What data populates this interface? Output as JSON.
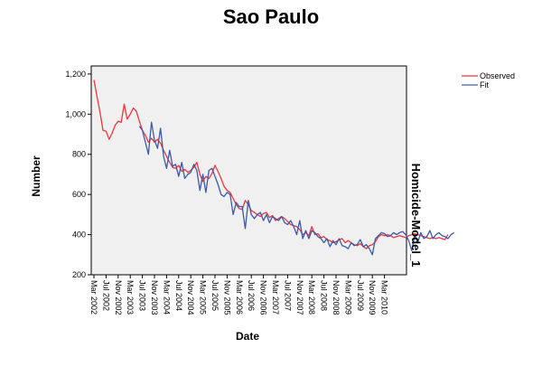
{
  "chart_data": {
    "type": "line",
    "title": "Sao Paulo",
    "xlabel": "Date",
    "ylabel": "Number",
    "right_label": "Homicide-Model_1",
    "ylim": [
      200,
      1240
    ],
    "yticks": [
      200,
      400,
      600,
      800,
      1000,
      1200
    ],
    "ytick_labels": [
      "200",
      "400",
      "600",
      "800",
      "1,000",
      "1,200"
    ],
    "x_tick_labels": [
      "Mar 2002",
      "Jul 2002",
      "Nov 2002",
      "Mar 2003",
      "Jul 2003",
      "Nov 2003",
      "Mar 2004",
      "Jul 2004",
      "Nov 2004",
      "Mar 2005",
      "Jul 2005",
      "Nov 2005",
      "Mar 2006",
      "Jul 2006",
      "Nov 2006",
      "Mar 2007",
      "Jul 2007",
      "Nov 2007",
      "Mar 2008",
      "Jul 2008",
      "Nov 2008",
      "Mar 2009",
      "Jul 2009",
      "Nov 2009",
      "Mar 2010"
    ],
    "x_start_label": "Mar 2002",
    "months_per_tick": 4,
    "grid": false,
    "legend_position": "top-right",
    "series": [
      {
        "name": "Observed",
        "color": "#e8383d",
        "values": [
          1170,
          1090,
          1010,
          920,
          915,
          875,
          905,
          945,
          965,
          960,
          1050,
          975,
          1000,
          1030,
          1015,
          965,
          920,
          895,
          860,
          880,
          860,
          875,
          855,
          820,
          790,
          760,
          735,
          730,
          745,
          715,
          725,
          710,
          720,
          735,
          760,
          700,
          665,
          690,
          680,
          705,
          745,
          715,
          680,
          640,
          620,
          610,
          580,
          550,
          530,
          525,
          570,
          550,
          520,
          510,
          500,
          490,
          505,
          510,
          485,
          495,
          470,
          480,
          490,
          480,
          465,
          450,
          445,
          440,
          425,
          400,
          410,
          395,
          440,
          400,
          405,
          385,
          390,
          375,
          370,
          360,
          365,
          375,
          380,
          360,
          370,
          360,
          350,
          345,
          355,
          340,
          330,
          345,
          350,
          365,
          390,
          400,
          395,
          400,
          395,
          385,
          390,
          395,
          390,
          385,
          395,
          400,
          405,
          400,
          395,
          390,
          385,
          380,
          385,
          380,
          385,
          380,
          375,
          400
        ]
      },
      {
        "name": "Fit",
        "color": "#3a5ba9",
        "values": [
          null,
          null,
          null,
          null,
          null,
          null,
          null,
          null,
          null,
          null,
          null,
          null,
          null,
          null,
          null,
          940,
          920,
          860,
          800,
          960,
          870,
          830,
          930,
          790,
          730,
          820,
          740,
          750,
          690,
          760,
          680,
          700,
          710,
          750,
          720,
          620,
          700,
          610,
          720,
          730,
          690,
          650,
          600,
          590,
          610,
          600,
          500,
          560,
          540,
          540,
          430,
          570,
          500,
          480,
          500,
          510,
          470,
          500,
          460,
          490,
          480,
          470,
          490,
          460,
          450,
          470,
          440,
          400,
          470,
          380,
          420,
          380,
          420,
          410,
          390,
          380,
          360,
          380,
          340,
          370,
          350,
          380,
          345,
          340,
          330,
          360,
          345,
          350,
          375,
          340,
          350,
          330,
          300,
          380,
          395,
          410,
          405,
          390,
          395,
          410,
          400,
          410,
          415,
          400,
          370,
          320,
          400,
          360,
          410,
          380,
          390,
          420,
          380,
          400,
          410,
          395,
          390,
          380,
          400,
          410
        ]
      }
    ]
  }
}
